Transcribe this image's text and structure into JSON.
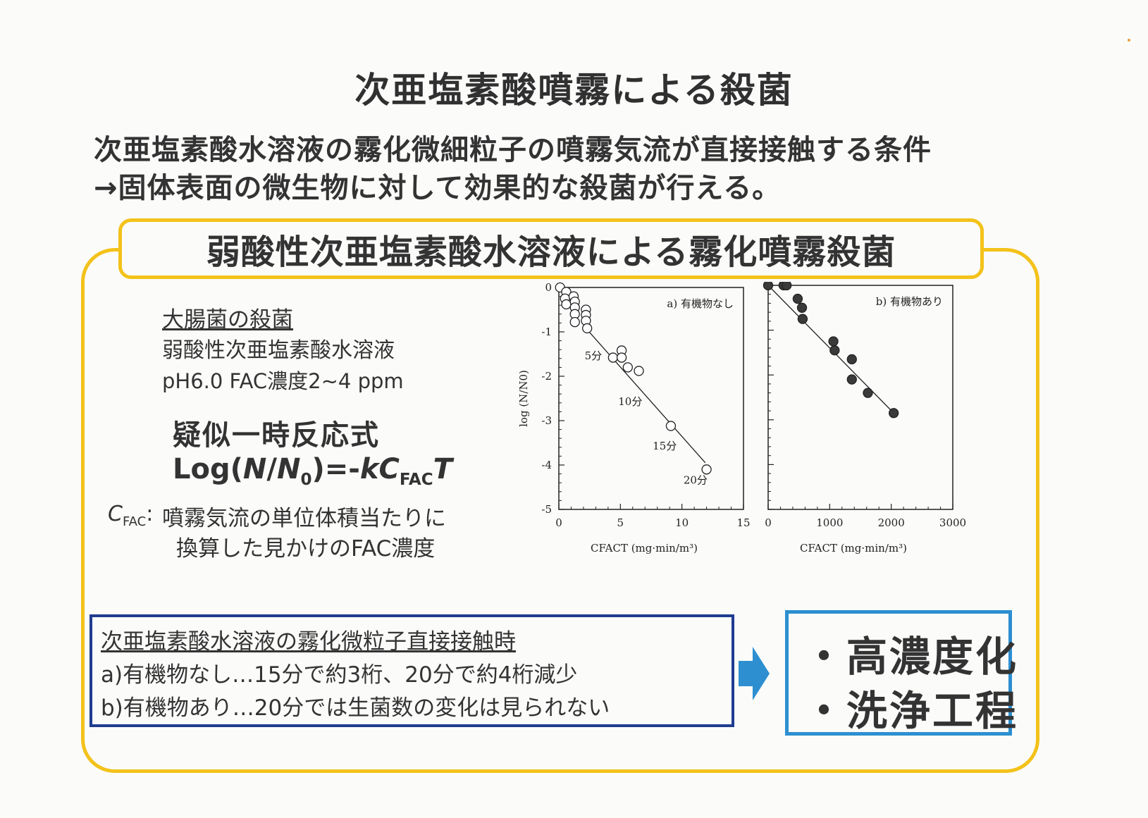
{
  "title": "次亜塩素酸噴霧による殺菌",
  "intro": {
    "line1": "次亜塩素酸水溶液の霧化微細粒子の噴霧気流が直接接触する条件",
    "line2": "→固体表面の微生物に対して効果的な殺菌が行える。"
  },
  "heading": "弱酸性次亜塩素酸水溶液による霧化噴霧殺菌",
  "subject": {
    "title": "大腸菌の殺菌",
    "line1": "弱酸性次亜塩素酸水溶液",
    "line2": "pH6.0 FAC濃度2~4 ppm"
  },
  "model": {
    "name": "疑似一時反応式",
    "formula_prefix": "Log(",
    "formula_N": "N",
    "formula_slash": "/",
    "formula_N0": "N",
    "formula_N0_sub": "0",
    "formula_mid": ")=-",
    "formula_k": "k",
    "formula_C": "C",
    "formula_C_sub": "FAC",
    "formula_T": "T"
  },
  "cfac_note": {
    "symbol": "C",
    "symbol_sub": "FAC",
    "colon": ":",
    "line1": "噴霧気流の単位体積当たりに",
    "line2": "換算した見かけのFAC濃度"
  },
  "chart_data": [
    {
      "type": "scatter",
      "title": "a) 有機物なし",
      "ylabel": "log (N/N0)",
      "xlabel": "CFACT (mg·min/m³)",
      "xlim": [
        0,
        15
      ],
      "ylim": [
        -5,
        0
      ],
      "xticks": [
        0,
        5,
        10,
        15
      ],
      "yticks": [
        0,
        -1,
        -2,
        -3,
        -4,
        -5
      ],
      "marker": "open-circle",
      "points": [
        [
          0.1,
          0.0
        ],
        [
          0.6,
          -0.1
        ],
        [
          0.5,
          -0.25
        ],
        [
          0.6,
          -0.38
        ],
        [
          1.2,
          -0.2
        ],
        [
          1.3,
          -0.32
        ],
        [
          1.3,
          -0.45
        ],
        [
          1.3,
          -0.6
        ],
        [
          1.3,
          -0.78
        ],
        [
          2.2,
          -0.5
        ],
        [
          2.2,
          -0.62
        ],
        [
          2.2,
          -0.75
        ],
        [
          2.3,
          -0.92
        ],
        [
          4.4,
          -1.58
        ],
        [
          5.1,
          -1.42
        ],
        [
          5.1,
          -1.58
        ],
        [
          5.6,
          -1.8
        ],
        [
          6.5,
          -1.88
        ],
        [
          9.1,
          -3.12
        ],
        [
          12.0,
          -4.1
        ]
      ],
      "fit_line": [
        [
          2.3,
          -0.95
        ],
        [
          11.9,
          -3.95
        ]
      ],
      "annotations": [
        {
          "text": "5分",
          "x": 2.8,
          "y": -1.62
        },
        {
          "text": "10分",
          "x": 5.8,
          "y": -2.65
        },
        {
          "text": "15分",
          "x": 8.6,
          "y": -3.65
        },
        {
          "text": "20分",
          "x": 11.1,
          "y": -4.42
        }
      ]
    },
    {
      "type": "scatter",
      "title": "b) 有機物あり",
      "xlabel": "CFACT (mg·min/m³)",
      "xlim": [
        0,
        3000
      ],
      "ylim": [
        -5,
        0
      ],
      "xticks": [
        0,
        1000,
        2000,
        3000
      ],
      "marker": "filled-circle",
      "points": [
        [
          0,
          0.0
        ],
        [
          250,
          0.0
        ],
        [
          300,
          0.0
        ],
        [
          480,
          -0.3
        ],
        [
          550,
          -0.5
        ],
        [
          560,
          -0.75
        ],
        [
          1060,
          -1.25
        ],
        [
          1080,
          -1.45
        ],
        [
          1360,
          -1.65
        ],
        [
          1360,
          -2.1
        ],
        [
          1620,
          -2.4
        ],
        [
          2040,
          -2.85
        ]
      ],
      "fit_line": [
        [
          0,
          0.0
        ],
        [
          2040,
          -2.85
        ]
      ]
    }
  ],
  "summary": {
    "title": "次亜塩素酸水溶液の霧化微粒子直接接触時",
    "line_a": "a)有機物なし…15分で約3桁、20分で約4桁減少",
    "line_b": "b)有機物あり…20分では生菌数の変化は見られない"
  },
  "result": {
    "item1": "・高濃度化",
    "item2": "・洗浄工程"
  },
  "colors": {
    "frame_accent": "#f3c21a",
    "summary_border": "#1f3c8f",
    "result_border": "#2d8fd0",
    "arrow": "#2d8fd0"
  }
}
